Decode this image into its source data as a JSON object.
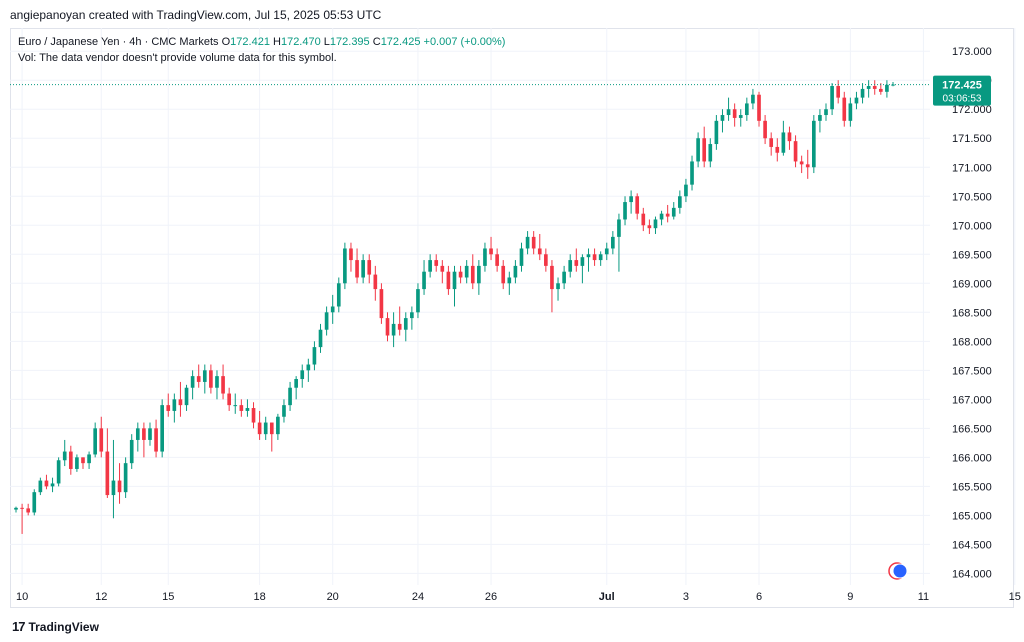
{
  "header": {
    "credit": "angiepanoyan created with TradingView.com, Jul 15, 2025 05:53 UTC"
  },
  "legend": {
    "symbol": "Euro / Japanese Yen · 4h · CMC Markets",
    "open_label": "O",
    "open": "172.421",
    "high_label": "H",
    "high": "172.470",
    "low_label": "L",
    "low": "172.395",
    "close_label": "C",
    "close": "172.425",
    "change": "+0.007 (+0.00%)",
    "volume_note": "Vol: The data vendor doesn't provide volume data for this symbol."
  },
  "price_badge": {
    "price": "172.425",
    "countdown": "03:06:53"
  },
  "footer": {
    "brand": "TradingView"
  },
  "colors": {
    "up": "#089981",
    "down": "#f23645",
    "grid": "#f0f3fa",
    "axis_text": "#131722"
  },
  "chart_data": {
    "type": "candlestick",
    "ylim": [
      163.8,
      173.4
    ],
    "y_ticks": [
      "164.000",
      "164.500",
      "165.000",
      "165.500",
      "166.000",
      "166.500",
      "167.000",
      "167.500",
      "168.000",
      "168.500",
      "169.000",
      "169.500",
      "170.000",
      "170.500",
      "171.000",
      "171.500",
      "172.000",
      "172.500",
      "173.000"
    ],
    "x_ticks": [
      {
        "label": "10",
        "index": 1
      },
      {
        "label": "12",
        "index": 14
      },
      {
        "label": "15",
        "index": 25
      },
      {
        "label": "18",
        "index": 40
      },
      {
        "label": "20",
        "index": 52
      },
      {
        "label": "24",
        "index": 66
      },
      {
        "label": "26",
        "index": 78
      },
      {
        "label": "Jul",
        "index": 97
      },
      {
        "label": "3",
        "index": 110
      },
      {
        "label": "6",
        "index": 122
      },
      {
        "label": "9",
        "index": 137
      },
      {
        "label": "11",
        "index": 149
      },
      {
        "label": "15",
        "index": 164
      }
    ],
    "last_price": 172.425,
    "candles": [
      [
        165.1,
        165.15,
        165.05,
        165.13
      ],
      [
        165.13,
        165.2,
        164.68,
        165.12
      ],
      [
        165.12,
        165.2,
        165.0,
        165.05
      ],
      [
        165.05,
        165.45,
        165.0,
        165.4
      ],
      [
        165.4,
        165.65,
        165.35,
        165.6
      ],
      [
        165.6,
        165.7,
        165.45,
        165.5
      ],
      [
        165.5,
        165.65,
        165.4,
        165.55
      ],
      [
        165.55,
        166.0,
        165.5,
        165.95
      ],
      [
        165.95,
        166.3,
        165.85,
        166.1
      ],
      [
        166.1,
        166.2,
        165.7,
        165.8
      ],
      [
        165.8,
        166.05,
        165.75,
        166.0
      ],
      [
        166.0,
        166.0,
        165.8,
        165.9
      ],
      [
        165.9,
        166.1,
        165.8,
        166.05
      ],
      [
        166.05,
        166.6,
        166.0,
        166.5
      ],
      [
        166.5,
        166.7,
        166.0,
        166.1
      ],
      [
        166.1,
        166.5,
        165.3,
        165.35
      ],
      [
        165.35,
        166.3,
        164.95,
        165.6
      ],
      [
        165.6,
        165.9,
        165.2,
        165.4
      ],
      [
        165.4,
        166.0,
        165.3,
        165.9
      ],
      [
        165.9,
        166.4,
        165.8,
        166.3
      ],
      [
        166.3,
        166.6,
        166.1,
        166.5
      ],
      [
        166.5,
        166.6,
        166.0,
        166.3
      ],
      [
        166.3,
        166.6,
        166.2,
        166.5
      ],
      [
        166.5,
        166.65,
        166.0,
        166.1
      ],
      [
        166.1,
        167.0,
        166.0,
        166.9
      ],
      [
        166.9,
        167.1,
        166.7,
        166.8
      ],
      [
        166.8,
        167.1,
        166.6,
        167.0
      ],
      [
        167.0,
        167.3,
        166.7,
        166.9
      ],
      [
        166.9,
        167.25,
        166.8,
        167.2
      ],
      [
        167.2,
        167.5,
        167.0,
        167.4
      ],
      [
        167.4,
        167.6,
        167.2,
        167.3
      ],
      [
        167.3,
        167.6,
        167.1,
        167.5
      ],
      [
        167.5,
        167.6,
        167.1,
        167.2
      ],
      [
        167.2,
        167.5,
        167.0,
        167.4
      ],
      [
        167.4,
        167.6,
        167.0,
        167.1
      ],
      [
        167.1,
        167.2,
        166.8,
        166.9
      ],
      [
        166.9,
        167.1,
        166.75,
        166.9
      ],
      [
        166.9,
        167.0,
        166.7,
        166.8
      ],
      [
        166.8,
        167.0,
        166.7,
        166.85
      ],
      [
        166.85,
        166.95,
        166.5,
        166.6
      ],
      [
        166.6,
        166.8,
        166.3,
        166.4
      ],
      [
        166.4,
        166.7,
        166.3,
        166.6
      ],
      [
        166.6,
        166.6,
        166.1,
        166.4
      ],
      [
        166.4,
        166.75,
        166.3,
        166.7
      ],
      [
        166.7,
        167.0,
        166.6,
        166.9
      ],
      [
        166.9,
        167.3,
        166.8,
        167.2
      ],
      [
        167.2,
        167.4,
        167.0,
        167.35
      ],
      [
        167.35,
        167.6,
        167.2,
        167.5
      ],
      [
        167.5,
        167.7,
        167.3,
        167.6
      ],
      [
        167.6,
        168.0,
        167.5,
        167.9
      ],
      [
        167.9,
        168.3,
        167.8,
        168.2
      ],
      [
        168.2,
        168.6,
        168.1,
        168.5
      ],
      [
        168.5,
        168.8,
        168.3,
        168.6
      ],
      [
        168.6,
        169.1,
        168.5,
        169.0
      ],
      [
        169.0,
        169.7,
        168.9,
        169.6
      ],
      [
        169.6,
        169.7,
        169.2,
        169.4
      ],
      [
        169.4,
        169.6,
        169.0,
        169.1
      ],
      [
        169.1,
        169.5,
        169.0,
        169.4
      ],
      [
        169.4,
        169.5,
        169.0,
        169.15
      ],
      [
        169.15,
        169.3,
        168.7,
        168.9
      ],
      [
        168.9,
        169.0,
        168.3,
        168.4
      ],
      [
        168.4,
        168.5,
        168.0,
        168.1
      ],
      [
        168.1,
        168.5,
        167.9,
        168.3
      ],
      [
        168.3,
        168.6,
        168.1,
        168.2
      ],
      [
        168.2,
        168.5,
        168.0,
        168.4
      ],
      [
        168.4,
        168.6,
        168.2,
        168.5
      ],
      [
        168.5,
        169.0,
        168.4,
        168.9
      ],
      [
        168.9,
        169.4,
        168.8,
        169.2
      ],
      [
        169.2,
        169.5,
        169.1,
        169.4
      ],
      [
        169.4,
        169.5,
        169.2,
        169.3
      ],
      [
        169.3,
        169.4,
        169.0,
        169.2
      ],
      [
        169.2,
        169.3,
        168.8,
        168.9
      ],
      [
        168.9,
        169.3,
        168.6,
        169.2
      ],
      [
        169.2,
        169.3,
        169.0,
        169.1
      ],
      [
        169.1,
        169.4,
        169.0,
        169.3
      ],
      [
        169.3,
        169.5,
        168.9,
        169.0
      ],
      [
        169.0,
        169.4,
        168.8,
        169.3
      ],
      [
        169.3,
        169.7,
        169.2,
        169.6
      ],
      [
        169.6,
        169.8,
        169.4,
        169.5
      ],
      [
        169.5,
        169.6,
        169.2,
        169.3
      ],
      [
        169.3,
        169.4,
        168.9,
        169.0
      ],
      [
        169.0,
        169.2,
        168.8,
        169.1
      ],
      [
        169.1,
        169.4,
        169.0,
        169.3
      ],
      [
        169.3,
        169.7,
        169.2,
        169.6
      ],
      [
        169.6,
        169.9,
        169.5,
        169.8
      ],
      [
        169.8,
        169.9,
        169.5,
        169.6
      ],
      [
        169.6,
        169.85,
        169.4,
        169.5
      ],
      [
        169.5,
        169.6,
        169.2,
        169.3
      ],
      [
        169.3,
        169.4,
        168.5,
        168.9
      ],
      [
        168.9,
        169.1,
        168.7,
        169.0
      ],
      [
        169.0,
        169.3,
        168.9,
        169.2
      ],
      [
        169.2,
        169.5,
        169.1,
        169.4
      ],
      [
        169.4,
        169.6,
        169.2,
        169.3
      ],
      [
        169.3,
        169.5,
        169.0,
        169.45
      ],
      [
        169.45,
        169.6,
        169.2,
        169.5
      ],
      [
        169.5,
        169.6,
        169.3,
        169.4
      ],
      [
        169.4,
        169.55,
        169.3,
        169.5
      ],
      [
        169.5,
        169.7,
        169.4,
        169.6
      ],
      [
        169.6,
        169.9,
        169.5,
        169.8
      ],
      [
        169.8,
        170.2,
        169.2,
        170.1
      ],
      [
        170.1,
        170.5,
        170.0,
        170.4
      ],
      [
        170.4,
        170.6,
        170.2,
        170.5
      ],
      [
        170.5,
        170.55,
        170.1,
        170.2
      ],
      [
        170.2,
        170.3,
        169.9,
        170.0
      ],
      [
        170.0,
        170.1,
        169.85,
        169.95
      ],
      [
        169.95,
        170.15,
        169.85,
        170.1
      ],
      [
        170.1,
        170.25,
        170.0,
        170.2
      ],
      [
        170.2,
        170.35,
        170.05,
        170.15
      ],
      [
        170.15,
        170.4,
        170.1,
        170.3
      ],
      [
        170.3,
        170.6,
        170.2,
        170.5
      ],
      [
        170.5,
        170.8,
        170.4,
        170.7
      ],
      [
        170.7,
        171.2,
        170.6,
        171.1
      ],
      [
        171.1,
        171.6,
        171.0,
        171.5
      ],
      [
        171.5,
        171.7,
        171.0,
        171.1
      ],
      [
        171.1,
        171.5,
        171.0,
        171.4
      ],
      [
        171.4,
        171.9,
        171.3,
        171.8
      ],
      [
        171.8,
        172.0,
        171.6,
        171.9
      ],
      [
        171.9,
        172.2,
        171.8,
        172.0
      ],
      [
        172.0,
        172.1,
        171.7,
        171.85
      ],
      [
        171.85,
        172.0,
        171.7,
        171.9
      ],
      [
        171.9,
        172.2,
        171.8,
        172.1
      ],
      [
        172.1,
        172.35,
        172.0,
        172.25
      ],
      [
        172.25,
        172.3,
        171.7,
        171.8
      ],
      [
        171.8,
        171.9,
        171.4,
        171.5
      ],
      [
        171.5,
        171.6,
        171.2,
        171.35
      ],
      [
        171.35,
        171.5,
        171.1,
        171.25
      ],
      [
        171.25,
        171.8,
        171.2,
        171.6
      ],
      [
        171.6,
        171.7,
        171.3,
        171.45
      ],
      [
        171.45,
        171.55,
        171.0,
        171.1
      ],
      [
        171.1,
        171.2,
        170.9,
        171.05
      ],
      [
        171.05,
        171.3,
        170.8,
        171.0
      ],
      [
        171.0,
        171.9,
        170.9,
        171.8
      ],
      [
        171.8,
        172.0,
        171.6,
        171.9
      ],
      [
        171.9,
        172.1,
        171.8,
        172.0
      ],
      [
        172.0,
        172.45,
        171.9,
        172.4
      ],
      [
        172.4,
        172.5,
        172.1,
        172.2
      ],
      [
        172.2,
        172.3,
        171.7,
        171.8
      ],
      [
        171.8,
        172.2,
        171.7,
        172.1
      ],
      [
        172.1,
        172.3,
        172.0,
        172.2
      ],
      [
        172.2,
        172.45,
        172.1,
        172.35
      ],
      [
        172.35,
        172.5,
        172.2,
        172.4
      ],
      [
        172.4,
        172.5,
        172.25,
        172.35
      ],
      [
        172.35,
        172.45,
        172.25,
        172.3
      ],
      [
        172.3,
        172.5,
        172.2,
        172.421
      ],
      [
        172.421,
        172.47,
        172.395,
        172.425
      ]
    ]
  }
}
